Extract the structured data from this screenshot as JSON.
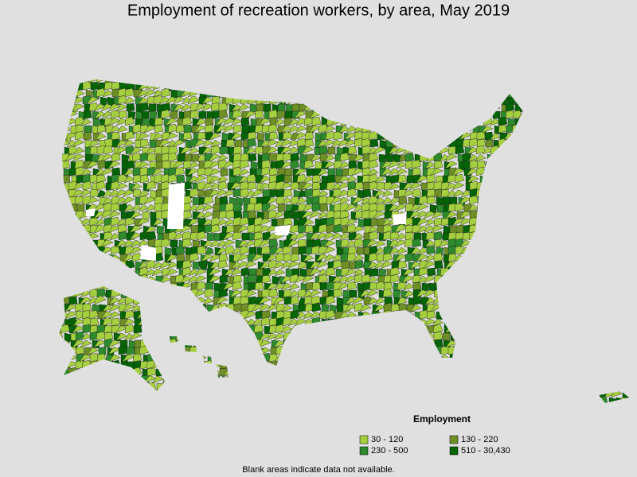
{
  "title": "Employment of recreation workers, by area, May 2019",
  "legend": {
    "title": "Employment",
    "items": [
      {
        "label": "30 - 120",
        "color": "#a6cf3f"
      },
      {
        "label": "130 - 220",
        "color": "#6e8f26"
      },
      {
        "label": "230 - 500",
        "color": "#2d8a2d"
      },
      {
        "label": "510 - 30,430",
        "color": "#056405"
      }
    ]
  },
  "note": "Blank areas indicate data not available."
}
